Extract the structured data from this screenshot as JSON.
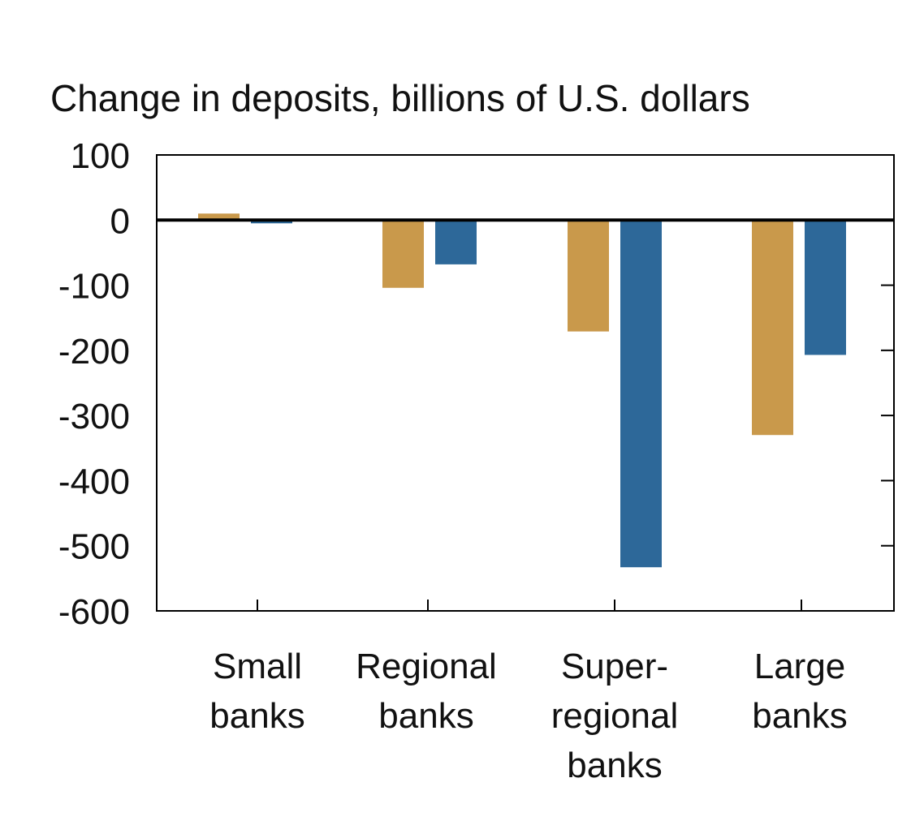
{
  "chart_data": {
    "type": "bar",
    "title": "Change in deposits, billions of U.S. dollars",
    "categories": [
      [
        "Small",
        "banks"
      ],
      [
        "Regional",
        "banks"
      ],
      [
        "Super-",
        "regional",
        "banks"
      ],
      [
        "Large",
        "banks"
      ]
    ],
    "series": [
      {
        "values": [
          10,
          -104,
          -171,
          -330
        ],
        "color": "#c9994b"
      },
      {
        "values": [
          -5,
          -68,
          -533,
          -207
        ],
        "color": "#2d6899"
      }
    ],
    "ylim": [
      -600,
      100
    ],
    "yticks": [
      100,
      0,
      -100,
      -200,
      -300,
      -400,
      -500,
      -600
    ],
    "ytick_labels": [
      "100",
      "0",
      "-100",
      "-200",
      "-300",
      "-400",
      "-500",
      "-600"
    ],
    "grid": false,
    "legend": "none",
    "zero_line": true
  }
}
